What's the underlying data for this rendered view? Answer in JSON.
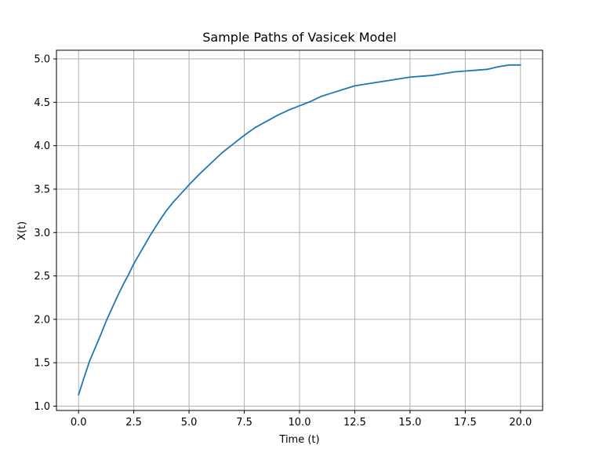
{
  "chart_data": {
    "type": "line",
    "title": "Sample Paths of Vasicek Model",
    "xlabel": "Time (t)",
    "ylabel": "X(t)",
    "xlim": [
      -1.0,
      21.0
    ],
    "ylim": [
      0.95,
      5.1
    ],
    "xticks": [
      0.0,
      2.5,
      5.0,
      7.5,
      10.0,
      12.5,
      15.0,
      17.5,
      20.0
    ],
    "xtick_labels": [
      "0.0",
      "2.5",
      "5.0",
      "7.5",
      "10.0",
      "12.5",
      "15.0",
      "17.5",
      "20.0"
    ],
    "yticks": [
      1.0,
      1.5,
      2.0,
      2.5,
      3.0,
      3.5,
      4.0,
      4.5,
      5.0
    ],
    "ytick_labels": [
      "1.0",
      "1.5",
      "2.0",
      "2.5",
      "3.0",
      "3.5",
      "4.0",
      "4.5",
      "5.0"
    ],
    "grid": true,
    "line_color": "#1f77b4",
    "series": [
      {
        "x": [
          0.0,
          0.25,
          0.5,
          0.75,
          1.0,
          1.25,
          1.5,
          1.75,
          2.0,
          2.25,
          2.5,
          2.75,
          3.0,
          3.25,
          3.5,
          3.75,
          4.0,
          4.25,
          4.5,
          4.75,
          5.0,
          5.5,
          6.0,
          6.5,
          7.0,
          7.5,
          8.0,
          8.5,
          9.0,
          9.5,
          10.0,
          10.5,
          11.0,
          11.5,
          12.0,
          12.5,
          13.0,
          13.5,
          14.0,
          14.5,
          15.0,
          15.5,
          16.0,
          16.5,
          17.0,
          17.5,
          18.0,
          18.5,
          19.0,
          19.5,
          20.0
        ],
        "y": [
          1.13,
          1.33,
          1.52,
          1.67,
          1.82,
          1.98,
          2.12,
          2.26,
          2.39,
          2.51,
          2.64,
          2.75,
          2.86,
          2.97,
          3.07,
          3.17,
          3.26,
          3.34,
          3.41,
          3.48,
          3.55,
          3.68,
          3.8,
          3.92,
          4.02,
          4.12,
          4.21,
          4.28,
          4.35,
          4.41,
          4.46,
          4.51,
          4.57,
          4.61,
          4.65,
          4.69,
          4.71,
          4.73,
          4.75,
          4.77,
          4.79,
          4.8,
          4.81,
          4.83,
          4.85,
          4.86,
          4.87,
          4.88,
          4.91,
          4.93,
          4.93
        ]
      }
    ]
  }
}
